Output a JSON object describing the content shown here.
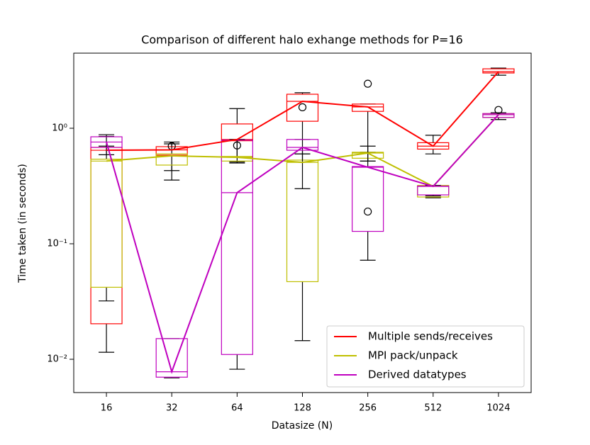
{
  "chart_data": {
    "type": "boxplot",
    "title": "Comparison of different halo exhange methods for P=16",
    "x_label": "Datasize (N)",
    "y_label": "Time taken (in seconds)",
    "categories": [
      "16",
      "32",
      "64",
      "128",
      "256",
      "512",
      "1024"
    ],
    "log_scale": true,
    "ylim": [
      0.00515,
      4.47
    ],
    "yticks": [
      {
        "value": 0.01,
        "label": "10⁻²"
      },
      {
        "value": 0.1,
        "label": "10⁻¹"
      },
      {
        "value": 1,
        "label": "10⁰"
      }
    ],
    "legend": "lower right",
    "series": [
      {
        "name": "Multiple sends/receives",
        "color": "#ff0000",
        "q1": [
          0.0203,
          0.585,
          0.78,
          1.15,
          1.4,
          0.66,
          3.01
        ],
        "median": [
          0.645,
          0.65,
          0.8,
          1.71,
          1.53,
          0.7,
          3.09
        ],
        "q3": [
          0.683,
          0.693,
          1.09,
          1.97,
          1.62,
          0.75,
          3.27
        ],
        "whislo": [
          0.0115,
          0.43,
          0.51,
          0.6,
          0.52,
          0.6,
          2.88
        ],
        "whishi": [
          0.85,
          0.733,
          1.48,
          2.03,
          1.62,
          0.87,
          3.32
        ],
        "fliers": [
          [],
          [
            0.7
          ],
          [
            0.71
          ],
          [
            1.52
          ],
          [
            2.43
          ],
          [],
          []
        ]
      },
      {
        "name": "MPI pack/unpack",
        "color": "#bfbf00",
        "q1": [
          0.042,
          0.48,
          0.52,
          0.047,
          0.55,
          0.254,
          1.24
        ],
        "median": [
          0.52,
          0.577,
          0.56,
          0.507,
          0.61,
          0.314,
          1.31
        ],
        "q3": [
          0.54,
          0.6,
          0.57,
          0.53,
          0.62,
          0.32,
          1.34
        ],
        "whislo": [
          0.032,
          0.356,
          0.5,
          0.0145,
          0.52,
          0.25,
          1.19
        ],
        "whishi": [
          0.7,
          0.76,
          0.8,
          0.6,
          0.62,
          0.32,
          1.36
        ],
        "fliers": [
          [],
          [],
          [],
          [],
          [],
          [],
          []
        ]
      },
      {
        "name": "Derived datatypes",
        "color": "#bf00bf",
        "q1": [
          0.683,
          0.007,
          0.011,
          0.645,
          0.128,
          0.265,
          1.24
        ],
        "median": [
          0.76,
          0.0078,
          0.277,
          0.683,
          0.46,
          0.314,
          1.31
        ],
        "q3": [
          0.844,
          0.0151,
          0.79,
          0.8,
          0.466,
          0.316,
          1.34
        ],
        "whislo": [
          0.59,
          0.0069,
          0.0082,
          0.3,
          0.072,
          0.26,
          1.19
        ],
        "whishi": [
          0.88,
          0.0151,
          0.79,
          0.8,
          0.7,
          0.32,
          1.36
        ],
        "fliers": [
          [],
          [],
          [],
          [],
          [
            0.19
          ],
          [],
          [
            1.44
          ]
        ]
      }
    ]
  }
}
